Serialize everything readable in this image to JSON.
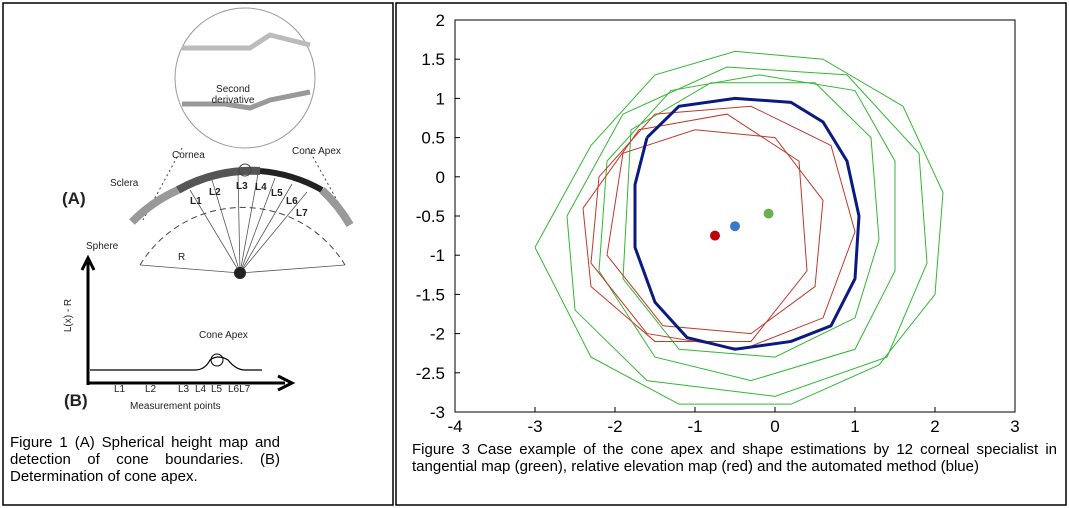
{
  "figure1": {
    "second_derivative": "Second derivative",
    "cornea": "Cornea",
    "cone_apex_top": "Cone Apex",
    "sclera": "Sclera",
    "panel_a": "(A)",
    "sphere": "Sphere",
    "radius": "R",
    "lines": [
      "L1",
      "L2",
      "L3",
      "L4",
      "L5",
      "L6",
      "L7"
    ],
    "y_axis": "L(x) - R",
    "cone_apex_graph": "Cone Apex",
    "x_ticks": [
      "L1",
      "L2",
      "L3",
      "L4",
      "L5",
      "L6L7"
    ],
    "panel_b": "(B)",
    "x_axis": "Measurement points",
    "caption": "Figure 1 (A) Spherical height map and detection of cone boundaries. (B) Determination of cone apex."
  },
  "chart_data": {
    "type": "line",
    "caption": "Figure 3 Case example of the cone apex and shape estimations by 12 corneal specialist in tangential map (green), relative elevation map (red) and the automated method (blue)",
    "xlim": [
      -4,
      3
    ],
    "ylim": [
      -3,
      2
    ],
    "xticks": [
      -4,
      -3,
      -2,
      -1,
      0,
      1,
      2,
      3
    ],
    "yticks": [
      2,
      1.5,
      1,
      0.5,
      0,
      -0.5,
      -1,
      -1.5,
      -2,
      -2.5,
      -3
    ],
    "series": [
      {
        "color": "#33b833",
        "width": 1,
        "x": [
          -3,
          -2.3,
          -1.5,
          -0.5,
          0.6,
          1.6,
          2.1,
          2.0,
          1.3,
          0.2,
          -1.2,
          -2.3,
          -3
        ],
        "y": [
          -0.9,
          0.4,
          1.3,
          1.6,
          1.5,
          0.9,
          -0.2,
          -1.5,
          -2.4,
          -2.9,
          -2.9,
          -2.3,
          -0.9
        ]
      },
      {
        "color": "#33b833",
        "width": 1,
        "x": [
          -2.1,
          -1.3,
          -0.2,
          1.0,
          1.5,
          1.5,
          1.0,
          -0.3,
          -1.5,
          -2.2,
          -2.1
        ],
        "y": [
          0.2,
          1.1,
          1.3,
          1.1,
          0.2,
          -1.2,
          -2.2,
          -2.6,
          -2.3,
          -1.2,
          0.2
        ]
      },
      {
        "color": "#33b833",
        "width": 1,
        "x": [
          -1.8,
          -0.8,
          0.5,
          1.2,
          1.3,
          1.0,
          0,
          -1.2,
          -1.9,
          -1.8
        ],
        "y": [
          0.6,
          1.2,
          1.2,
          0.5,
          -0.8,
          -1.8,
          -2.3,
          -2.2,
          -1.3,
          0.6
        ]
      },
      {
        "color": "#33b833",
        "width": 1,
        "x": [
          -2.6,
          -1.9,
          -0.6,
          0.9,
          1.8,
          1.9,
          1.4,
          0,
          -1.6,
          -2.5,
          -2.6
        ],
        "y": [
          -0.5,
          0.8,
          1.4,
          1.3,
          0.3,
          -1.1,
          -2.3,
          -2.8,
          -2.6,
          -1.7,
          -0.5
        ]
      },
      {
        "color": "#c0392b",
        "width": 1,
        "x": [
          -2.2,
          -1.5,
          -0.3,
          0.7,
          1.0,
          0.6,
          -0.4,
          -1.6,
          -2.3,
          -2.2
        ],
        "y": [
          0,
          0.8,
          0.9,
          0.4,
          -0.7,
          -1.8,
          -2.2,
          -2.0,
          -1.1,
          0
        ]
      },
      {
        "color": "#c0392b",
        "width": 1,
        "x": [
          -1.9,
          -1.0,
          0,
          0.6,
          0.5,
          -0.3,
          -1.4,
          -2.1,
          -1.9
        ],
        "y": [
          0.3,
          0.6,
          0.5,
          -0.3,
          -1.4,
          -2.0,
          -1.9,
          -1.0,
          0.3
        ]
      },
      {
        "color": "#c0392b",
        "width": 1,
        "x": [
          -2.4,
          -1.7,
          -0.6,
          0.3,
          0.4,
          -0.3,
          -1.5,
          -2.3,
          -2.4
        ],
        "y": [
          -0.4,
          0.6,
          0.8,
          0.2,
          -1.2,
          -2.1,
          -2.1,
          -1.4,
          -0.4
        ]
      },
      {
        "color": "#0a1a80",
        "width": 3,
        "x": [
          -1.6,
          -1.2,
          -0.5,
          0.2,
          0.6,
          0.9,
          1.05,
          1.0,
          0.7,
          0.2,
          -0.5,
          -1.1,
          -1.5,
          -1.75,
          -1.75,
          -1.6
        ],
        "y": [
          0.5,
          0.9,
          1.0,
          0.95,
          0.7,
          0.2,
          -0.5,
          -1.3,
          -1.9,
          -2.1,
          -2.2,
          -2.05,
          -1.6,
          -0.9,
          -0.1,
          0.5
        ]
      }
    ],
    "points": [
      {
        "color": "#c00000",
        "x": -0.75,
        "y": -0.75
      },
      {
        "color": "#3a78c8",
        "x": -0.5,
        "y": -0.63
      },
      {
        "color": "#6ab04c",
        "x": -0.08,
        "y": -0.47
      }
    ]
  }
}
